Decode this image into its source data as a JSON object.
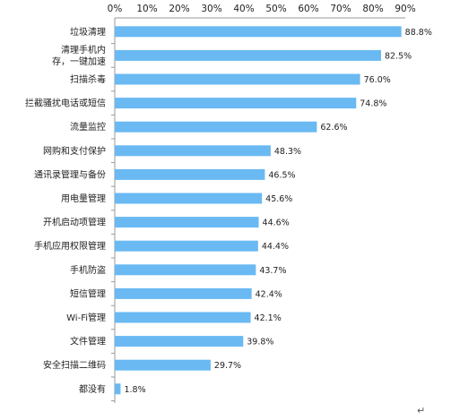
{
  "chart_data": {
    "type": "bar",
    "orientation": "horizontal",
    "title": "",
    "xlabel": "",
    "ylabel": "",
    "xlim": [
      0,
      90
    ],
    "xticks": [
      "0%",
      "10%",
      "20%",
      "30%",
      "40%",
      "50%",
      "60%",
      "70%",
      "80%",
      "90%"
    ],
    "xtick_values": [
      0,
      10,
      20,
      30,
      40,
      50,
      60,
      70,
      80,
      90
    ],
    "axis_position": "top",
    "grid": false,
    "bar_color": "#6ab9f3",
    "categories": [
      [
        "垃圾清理"
      ],
      [
        "清理手机内",
        "存，一键加速"
      ],
      [
        "扫描杀毒"
      ],
      [
        "拦截骚扰电话或短信"
      ],
      [
        "流量监控"
      ],
      [
        "网购和支付保护"
      ],
      [
        "通讯录管理与备份"
      ],
      [
        "用电量管理"
      ],
      [
        "开机启动项管理"
      ],
      [
        "手机应用权限管理"
      ],
      [
        "手机防盗"
      ],
      [
        "短信管理"
      ],
      [
        "Wi-Fi管理"
      ],
      [
        "文件管理"
      ],
      [
        "安全扫描二维码"
      ],
      [
        "都没有"
      ]
    ],
    "values": [
      88.8,
      82.5,
      76.0,
      74.8,
      62.6,
      48.3,
      46.5,
      45.6,
      44.6,
      44.4,
      43.7,
      42.4,
      42.1,
      39.8,
      29.7,
      1.8
    ],
    "value_labels": [
      "88.8%",
      "82.5%",
      "76.0%",
      "74.8%",
      "62.6%",
      "48.3%",
      "46.5%",
      "45.6%",
      "44.6%",
      "44.4%",
      "43.7%",
      "42.4%",
      "42.1%",
      "39.8%",
      "29.7%",
      "1.8%"
    ]
  },
  "return_mark": "↵"
}
